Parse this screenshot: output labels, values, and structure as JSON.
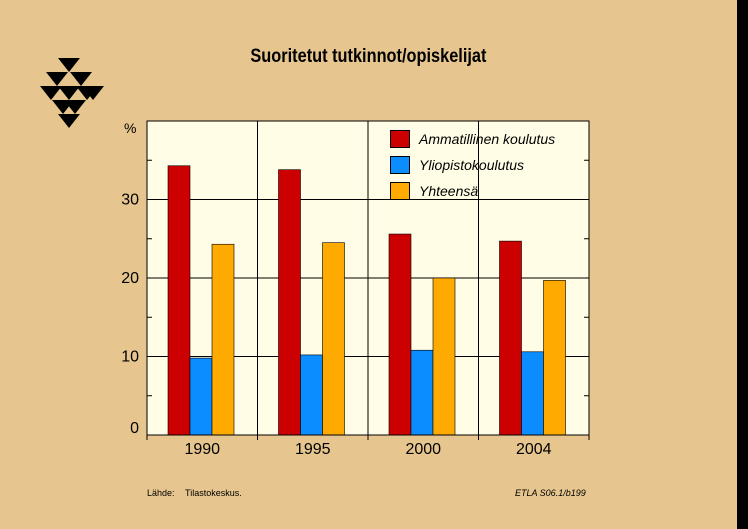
{
  "title": "Suoritetut tutkinnot/opiskelijat",
  "footer": {
    "source_label": "Lähde:",
    "source": "Tilastokeskus.",
    "code": "ETLA S06.1/b199"
  },
  "logo_icon": "etla-triangles-logo",
  "chart_data": {
    "type": "bar",
    "title": "Suoritetut tutkinnot/opiskelijat",
    "xlabel": "",
    "ylabel": "%",
    "categories": [
      "1990",
      "1995",
      "2000",
      "2004"
    ],
    "ylim": [
      0,
      40
    ],
    "yticks": [
      0,
      10,
      20,
      30
    ],
    "grid": true,
    "legend_position": "top-right",
    "series": [
      {
        "name": "Ammatillinen koulutus",
        "color": "#cc0000",
        "values": [
          34.3,
          33.8,
          25.6,
          24.7
        ]
      },
      {
        "name": "Yliopistokoulutus",
        "color": "#0b8cff",
        "values": [
          9.8,
          10.2,
          10.8,
          10.6
        ]
      },
      {
        "name": "Yhteensä",
        "color": "#ffaa00",
        "values": [
          24.3,
          24.5,
          20.0,
          19.7
        ]
      }
    ]
  }
}
